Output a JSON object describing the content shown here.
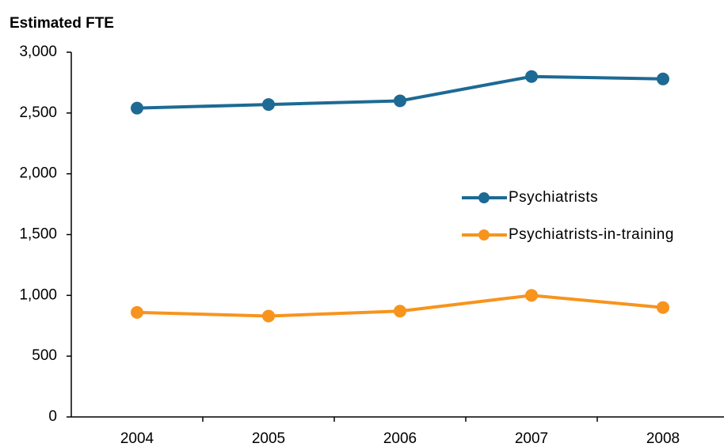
{
  "chart_data": {
    "type": "line",
    "y_axis_label": "Estimated FTE",
    "categories": [
      "2004",
      "2005",
      "2006",
      "2007",
      "2008"
    ],
    "series": [
      {
        "name": "Psychiatrists",
        "color": "#1d6a94",
        "values": [
          2540,
          2570,
          2600,
          2800,
          2780
        ]
      },
      {
        "name": "Psychiatrists-in-training",
        "color": "#f7941d",
        "values": [
          860,
          830,
          870,
          1000,
          900
        ]
      }
    ],
    "ylim": [
      0,
      3000
    ],
    "yticks": [
      0,
      500,
      {
        "value": 1000,
        "label": "1,000"
      },
      {
        "value": 1500,
        "label": "1,500"
      },
      {
        "value": 2000,
        "label": "2,000"
      },
      {
        "value": 2500,
        "label": "2,500"
      },
      {
        "value": 3000,
        "label": "3,000"
      }
    ],
    "grid": false
  }
}
